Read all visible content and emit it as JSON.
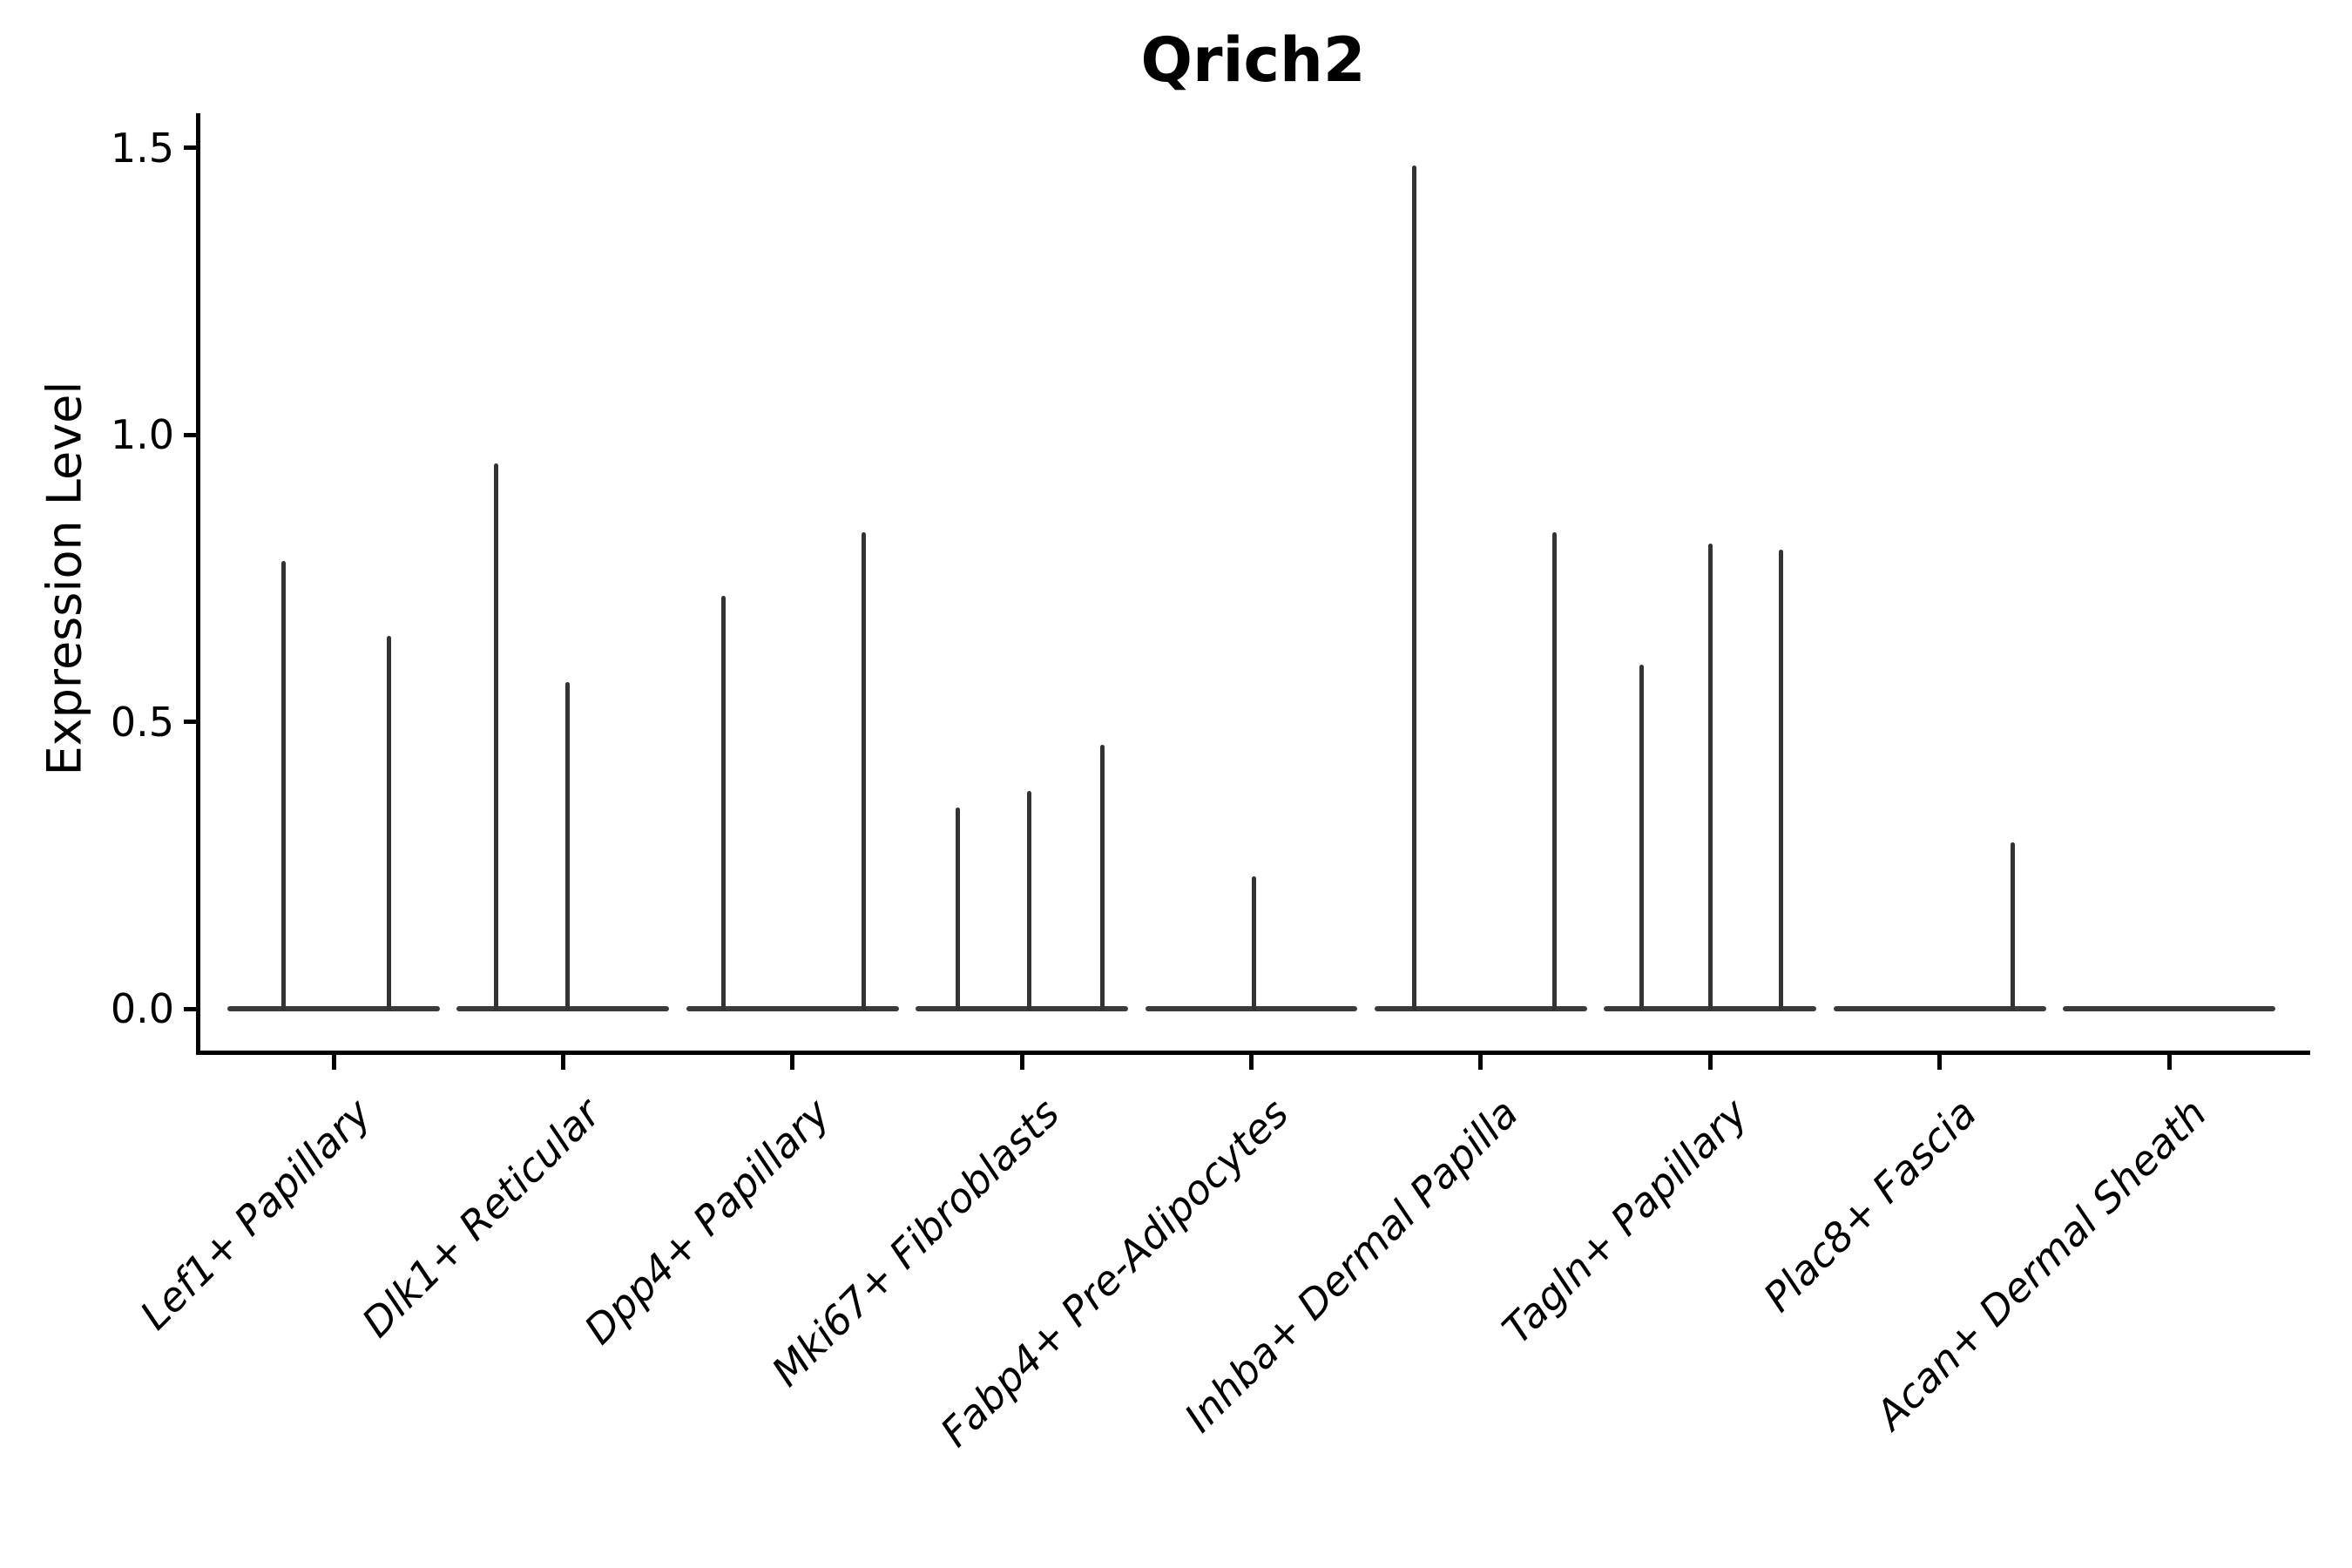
{
  "title": "Qrich2",
  "chart_data": {
    "type": "violin",
    "title": "Qrich2",
    "xlabel": "",
    "ylabel": "Expression Level",
    "ylim": [
      0,
      1.5
    ],
    "ytick_values": [
      0.0,
      0.5,
      1.0,
      1.5
    ],
    "ytick_labels": [
      "0.0",
      "0.5",
      "1.0",
      "1.5"
    ],
    "grid": false,
    "legend": null,
    "axis_color": "#000000",
    "violin_color": "#333333",
    "baseline_color": "#3a3a3a",
    "baseline_value": 0.0,
    "baseline_halfwidth_frac": 0.463,
    "categories": [
      "Lef1+ Papillary",
      "Dlk1+ Reticular",
      "Dpp4+ Papillary",
      "Mki67+ Fibroblasts",
      "Fabp4+ Pre-Adipocytes",
      "Inhba+ Dermal Papilla",
      "Tagln+ Papillary",
      "Plac8+ Fascia",
      "Acan+ Dermal Sheath"
    ],
    "groups": [
      {
        "category": "Lef1+ Papillary",
        "spikes": [
          {
            "pos": -0.22,
            "value": 0.78
          },
          {
            "pos": 0.24,
            "value": 0.65
          }
        ]
      },
      {
        "category": "Dlk1+ Reticular",
        "spikes": [
          {
            "pos": -0.29,
            "value": 0.95
          },
          {
            "pos": 0.02,
            "value": 0.57
          }
        ]
      },
      {
        "category": "Dpp4+ Papillary",
        "spikes": [
          {
            "pos": -0.3,
            "value": 0.72
          },
          {
            "pos": 0.31,
            "value": 0.83
          }
        ]
      },
      {
        "category": "Mki67+ Fibroblasts",
        "spikes": [
          {
            "pos": -0.28,
            "value": 0.35
          },
          {
            "pos": 0.03,
            "value": 0.38
          },
          {
            "pos": 0.35,
            "value": 0.46
          }
        ]
      },
      {
        "category": "Fabp4+ Pre-Adipocytes",
        "spikes": [
          {
            "pos": 0.01,
            "value": 0.23
          }
        ]
      },
      {
        "category": "Inhba+ Dermal Papilla",
        "spikes": [
          {
            "pos": -0.29,
            "value": 1.47
          },
          {
            "pos": 0.32,
            "value": 0.83
          }
        ]
      },
      {
        "category": "Tagln+ Papillary",
        "spikes": [
          {
            "pos": -0.3,
            "value": 0.6
          },
          {
            "pos": 0.0,
            "value": 0.81
          },
          {
            "pos": 0.31,
            "value": 0.8
          }
        ]
      },
      {
        "category": "Plac8+ Fascia",
        "spikes": [
          {
            "pos": 0.32,
            "value": 0.29
          }
        ]
      },
      {
        "category": "Acan+ Dermal Sheath",
        "spikes": []
      }
    ]
  }
}
